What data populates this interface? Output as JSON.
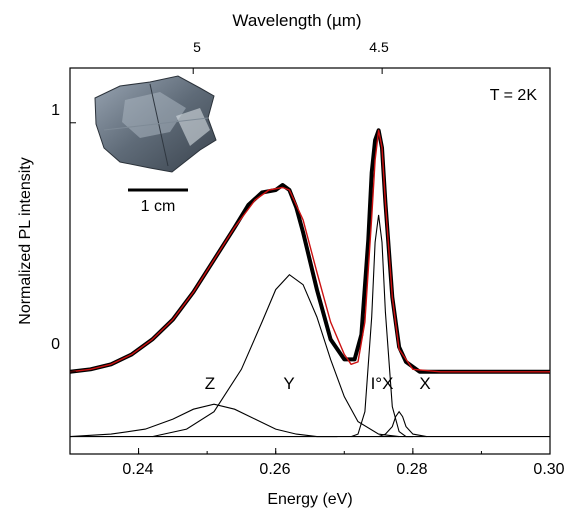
{
  "chart_data": {
    "type": "line",
    "title": "",
    "xlabel": "Energy (eV)",
    "ylabel": "Normalized PL intensity",
    "top_axis_label": "Wavelength (µm)",
    "xlim": [
      0.23,
      0.3
    ],
    "ylim": [
      -0.33,
      1.22
    ],
    "x_ticks": [
      0.24,
      0.26,
      0.28,
      0.3
    ],
    "x_tick_labels": [
      "0.24",
      "0.26",
      "0.28",
      "0.30"
    ],
    "y_ticks": [
      0,
      1
    ],
    "y_tick_labels": [
      "0",
      "1"
    ],
    "top_ticks_um": [
      5,
      4.5
    ],
    "top_tick_labels": [
      "5",
      "4.5"
    ],
    "grid": false,
    "legend": "none",
    "baseline_offset": -0.26,
    "annotations": {
      "temperature": "T = 2K",
      "scale_bar": "1 cm",
      "peaks": [
        "Z",
        "Y",
        "I°X",
        "X"
      ]
    },
    "colors": {
      "data": "#000000",
      "fit": "#cc1111",
      "components": "#000000"
    },
    "series": [
      {
        "kind": "measured",
        "style": "thick-black-noisy",
        "x": [
          0.23,
          0.233,
          0.236,
          0.239,
          0.242,
          0.245,
          0.248,
          0.251,
          0.254,
          0.256,
          0.258,
          0.26,
          0.261,
          0.262,
          0.263,
          0.264,
          0.266,
          0.268,
          0.27,
          0.2715,
          0.2725,
          0.2735,
          0.274,
          0.2745,
          0.275,
          0.2755,
          0.276,
          0.277,
          0.278,
          0.279,
          0.281,
          0.284,
          0.29,
          0.3
        ],
        "values": [
          0.0,
          0.01,
          0.03,
          0.07,
          0.13,
          0.21,
          0.32,
          0.45,
          0.58,
          0.67,
          0.72,
          0.73,
          0.75,
          0.73,
          0.66,
          0.56,
          0.33,
          0.13,
          0.05,
          0.05,
          0.15,
          0.53,
          0.8,
          0.93,
          0.97,
          0.9,
          0.68,
          0.3,
          0.1,
          0.04,
          0.0,
          0.0,
          0.0,
          0.0
        ]
      },
      {
        "kind": "fit",
        "style": "red",
        "x": [
          0.23,
          0.233,
          0.236,
          0.239,
          0.242,
          0.245,
          0.248,
          0.251,
          0.254,
          0.257,
          0.259,
          0.261,
          0.262,
          0.264,
          0.266,
          0.268,
          0.27,
          0.271,
          0.272,
          0.273,
          0.274,
          0.2745,
          0.275,
          0.2755,
          0.276,
          0.277,
          0.278,
          0.28,
          0.284,
          0.29,
          0.3
        ],
        "values": [
          0.0,
          0.01,
          0.03,
          0.07,
          0.13,
          0.21,
          0.32,
          0.45,
          0.58,
          0.69,
          0.73,
          0.74,
          0.73,
          0.61,
          0.4,
          0.2,
          0.07,
          0.03,
          0.04,
          0.2,
          0.62,
          0.85,
          0.97,
          0.9,
          0.68,
          0.3,
          0.09,
          0.01,
          0.0,
          0.0,
          0.0
        ]
      },
      {
        "kind": "component",
        "name": "Z",
        "x": [
          0.23,
          0.236,
          0.241,
          0.245,
          0.248,
          0.251,
          0.254,
          0.257,
          0.26,
          0.263,
          0.266,
          0.269
        ],
        "values": [
          0.0,
          0.01,
          0.03,
          0.07,
          0.11,
          0.13,
          0.11,
          0.07,
          0.03,
          0.01,
          0.0,
          0.0
        ]
      },
      {
        "kind": "component",
        "name": "Y",
        "x": [
          0.242,
          0.247,
          0.251,
          0.255,
          0.258,
          0.26,
          0.262,
          0.264,
          0.266,
          0.268,
          0.27,
          0.272,
          0.275,
          0.278
        ],
        "values": [
          0.0,
          0.03,
          0.1,
          0.27,
          0.46,
          0.59,
          0.65,
          0.61,
          0.48,
          0.31,
          0.16,
          0.06,
          0.01,
          0.0
        ]
      },
      {
        "kind": "component",
        "name": "I°X",
        "x": [
          0.271,
          0.272,
          0.273,
          0.274,
          0.2745,
          0.275,
          0.2755,
          0.276,
          0.277,
          0.278,
          0.279,
          0.28
        ],
        "values": [
          0.0,
          0.01,
          0.1,
          0.48,
          0.78,
          0.89,
          0.78,
          0.5,
          0.12,
          0.02,
          0.0,
          0.0
        ]
      },
      {
        "kind": "component",
        "name": "X",
        "x": [
          0.275,
          0.276,
          0.277,
          0.2775,
          0.278,
          0.2785,
          0.279,
          0.28,
          0.282
        ],
        "values": [
          0.0,
          0.01,
          0.04,
          0.08,
          0.1,
          0.08,
          0.04,
          0.01,
          0.0
        ]
      }
    ]
  }
}
